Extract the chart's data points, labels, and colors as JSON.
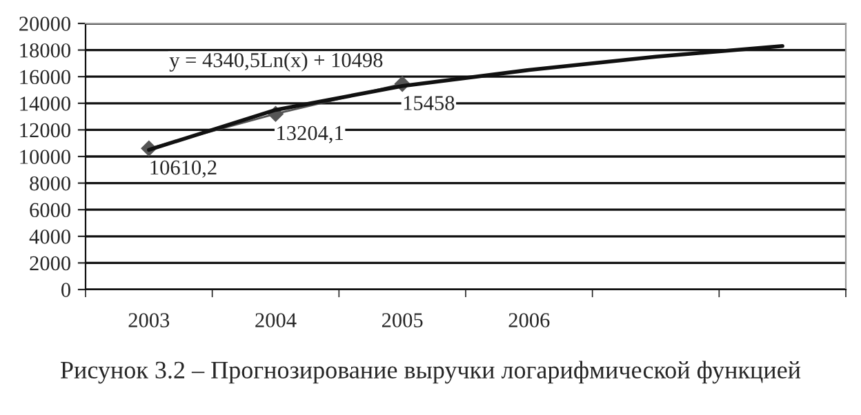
{
  "chart_data": {
    "type": "line",
    "categories": [
      "2003",
      "2004",
      "2005",
      "2006",
      null,
      null
    ],
    "series": [
      {
        "color": "#555555",
        "values": [
          10610.2,
          13204.1,
          15458,
          null,
          null,
          null
        ],
        "marker": "diamond",
        "value_labels": [
          "10610,2",
          "13204,1",
          "15458",
          null,
          null,
          null
        ]
      },
      {
        "color": "#111111",
        "values": [
          10500,
          13500,
          15300,
          16500,
          17500,
          18300
        ],
        "marker": "none"
      }
    ],
    "ylim": [
      0,
      20000
    ],
    "yticks": [
      0,
      2000,
      4000,
      6000,
      8000,
      10000,
      12000,
      14000,
      16000,
      18000,
      20000
    ],
    "grid": "y",
    "legend": false,
    "annotations": [
      "y = 4340,5Ln(x) + 10498",
      "Рисунок 3.2 – Прогнозирование выручки логарифмической функцией"
    ]
  }
}
